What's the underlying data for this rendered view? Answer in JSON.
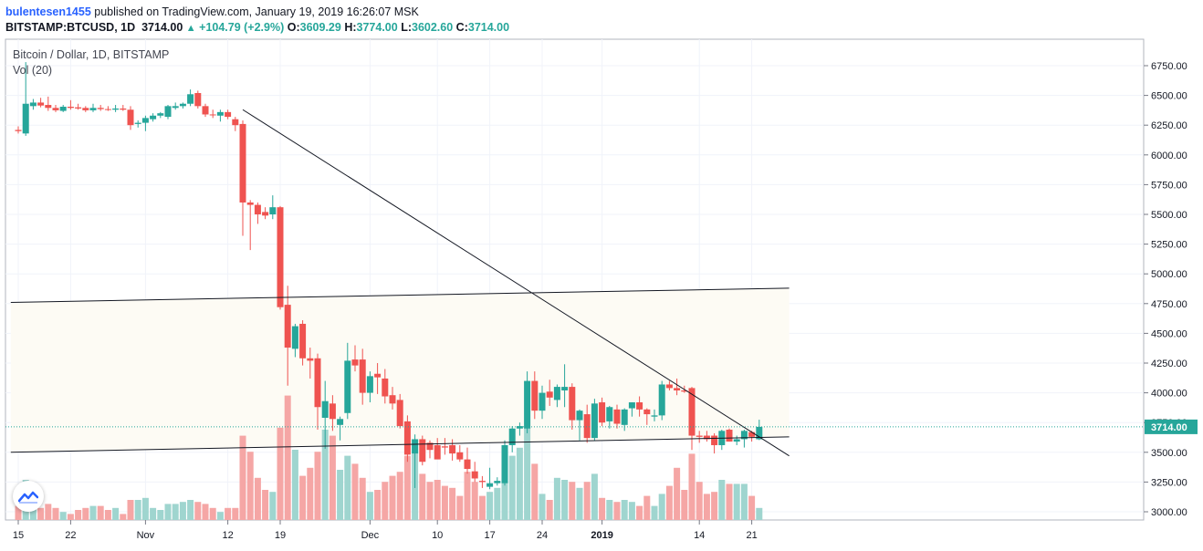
{
  "header": {
    "user": "bulentesen1455",
    "published_text": "published on TradingView.com, January 19, 2019 16:26:07 MSK"
  },
  "quote": {
    "symbol": "BITSTAMP:BTCUSD, 1D",
    "last": "3714.00",
    "change": "+104.79 (+2.9%)",
    "open_label": "O:",
    "open": "3609.29",
    "high_label": "H:",
    "high": "3774.00",
    "low_label": "L:",
    "low": "3602.60",
    "close_label": "C:",
    "close": "3714.00"
  },
  "legend": {
    "title": "Bitcoin / Dollar, 1D, BITSTAMP",
    "volume": "Vol (20)"
  },
  "colors": {
    "up": "#26a69a",
    "down": "#ef5350",
    "up_volume": "#9fd5cf",
    "down_volume": "#f5a6a5",
    "trendline": "#131722",
    "band_fill": "#fdfbf4",
    "price_tag": "#26a69a"
  },
  "chart_data": {
    "type": "candlestick",
    "y_axis_ticks": [
      "6750.00",
      "6500.00",
      "6250.00",
      "6000.00",
      "5750.00",
      "5500.00",
      "5250.00",
      "5000.00",
      "4750.00",
      "4500.00",
      "4250.00",
      "4000.00",
      "3750.00",
      "3500.00",
      "3250.00",
      "3000.00"
    ],
    "ylim": [
      2950,
      6850
    ],
    "x_axis_ticks": [
      {
        "label": "15",
        "index": 0
      },
      {
        "label": "22",
        "index": 7
      },
      {
        "label": "Nov",
        "index": 17
      },
      {
        "label": "12",
        "index": 28
      },
      {
        "label": "19",
        "index": 35
      },
      {
        "label": "Dec",
        "index": 47
      },
      {
        "label": "10",
        "index": 56
      },
      {
        "label": "17",
        "index": 63
      },
      {
        "label": "24",
        "index": 70
      },
      {
        "label": "2019",
        "index": 78
      },
      {
        "label": "14",
        "index": 91
      },
      {
        "label": "21",
        "index": 98
      }
    ],
    "last_price_label": "3714.00",
    "candles": [
      {
        "o": 6210,
        "h": 6240,
        "l": 6180,
        "c": 6200,
        "v": 0.35
      },
      {
        "o": 6180,
        "h": 6780,
        "l": 6160,
        "c": 6430,
        "v": 1.0
      },
      {
        "o": 6410,
        "h": 6470,
        "l": 6380,
        "c": 6440,
        "v": 0.35
      },
      {
        "o": 6440,
        "h": 6480,
        "l": 6400,
        "c": 6415,
        "v": 0.3
      },
      {
        "o": 6420,
        "h": 6490,
        "l": 6370,
        "c": 6395,
        "v": 0.4
      },
      {
        "o": 6395,
        "h": 6420,
        "l": 6360,
        "c": 6375,
        "v": 0.3
      },
      {
        "o": 6370,
        "h": 6420,
        "l": 6360,
        "c": 6405,
        "v": 0.2
      },
      {
        "o": 6405,
        "h": 6460,
        "l": 6380,
        "c": 6395,
        "v": 0.15
      },
      {
        "o": 6400,
        "h": 6430,
        "l": 6380,
        "c": 6390,
        "v": 0.25
      },
      {
        "o": 6395,
        "h": 6410,
        "l": 6360,
        "c": 6375,
        "v": 0.3
      },
      {
        "o": 6375,
        "h": 6430,
        "l": 6360,
        "c": 6395,
        "v": 0.35
      },
      {
        "o": 6395,
        "h": 6420,
        "l": 6370,
        "c": 6385,
        "v": 0.35
      },
      {
        "o": 6385,
        "h": 6410,
        "l": 6370,
        "c": 6380,
        "v": 0.25
      },
      {
        "o": 6380,
        "h": 6420,
        "l": 6360,
        "c": 6390,
        "v": 0.3
      },
      {
        "o": 6390,
        "h": 6420,
        "l": 6370,
        "c": 6380,
        "v": 0.15
      },
      {
        "o": 6380,
        "h": 6410,
        "l": 6210,
        "c": 6250,
        "v": 0.5
      },
      {
        "o": 6260,
        "h": 6290,
        "l": 6230,
        "c": 6270,
        "v": 0.5
      },
      {
        "o": 6270,
        "h": 6330,
        "l": 6200,
        "c": 6310,
        "v": 0.55
      },
      {
        "o": 6300,
        "h": 6350,
        "l": 6280,
        "c": 6330,
        "v": 0.3
      },
      {
        "o": 6330,
        "h": 6360,
        "l": 6310,
        "c": 6350,
        "v": 0.25
      },
      {
        "o": 6320,
        "h": 6420,
        "l": 6300,
        "c": 6410,
        "v": 0.4
      },
      {
        "o": 6395,
        "h": 6440,
        "l": 6380,
        "c": 6410,
        "v": 0.4
      },
      {
        "o": 6410,
        "h": 6440,
        "l": 6390,
        "c": 6430,
        "v": 0.45
      },
      {
        "o": 6430,
        "h": 6550,
        "l": 6410,
        "c": 6510,
        "v": 0.5
      },
      {
        "o": 6520,
        "h": 6540,
        "l": 6390,
        "c": 6410,
        "v": 0.45
      },
      {
        "o": 6410,
        "h": 6430,
        "l": 6320,
        "c": 6340,
        "v": 0.4
      },
      {
        "o": 6340,
        "h": 6380,
        "l": 6310,
        "c": 6335,
        "v": 0.3
      },
      {
        "o": 6330,
        "h": 6380,
        "l": 6280,
        "c": 6360,
        "v": 0.2
      },
      {
        "o": 6360,
        "h": 6380,
        "l": 6300,
        "c": 6320,
        "v": 0.3
      },
      {
        "o": 6300,
        "h": 6320,
        "l": 6200,
        "c": 6250,
        "v": 0.3
      },
      {
        "o": 6260,
        "h": 6290,
        "l": 5320,
        "c": 5600,
        "v": 2.1
      },
      {
        "o": 5600,
        "h": 5620,
        "l": 5200,
        "c": 5580,
        "v": 1.7
      },
      {
        "o": 5580,
        "h": 5600,
        "l": 5420,
        "c": 5500,
        "v": 1.05
      },
      {
        "o": 5520,
        "h": 5560,
        "l": 5460,
        "c": 5490,
        "v": 0.75
      },
      {
        "o": 5500,
        "h": 5660,
        "l": 5460,
        "c": 5560,
        "v": 0.7
      },
      {
        "o": 5560,
        "h": 5570,
        "l": 4700,
        "c": 4720,
        "v": 2.3
      },
      {
        "o": 4740,
        "h": 4900,
        "l": 4060,
        "c": 4380,
        "v": 3.1
      },
      {
        "o": 4370,
        "h": 4580,
        "l": 4300,
        "c": 4560,
        "v": 1.75
      },
      {
        "o": 4580,
        "h": 4610,
        "l": 4230,
        "c": 4290,
        "v": 1.1
      },
      {
        "o": 4290,
        "h": 4380,
        "l": 4120,
        "c": 4270,
        "v": 1.3
      },
      {
        "o": 4290,
        "h": 4330,
        "l": 3690,
        "c": 3880,
        "v": 1.7
      },
      {
        "o": 3790,
        "h": 4100,
        "l": 3530,
        "c": 3930,
        "v": 2.25
      },
      {
        "o": 3910,
        "h": 3980,
        "l": 3680,
        "c": 3780,
        "v": 2.1
      },
      {
        "o": 3730,
        "h": 3800,
        "l": 3600,
        "c": 3780,
        "v": 1.25
      },
      {
        "o": 3830,
        "h": 4420,
        "l": 3780,
        "c": 4270,
        "v": 1.6
      },
      {
        "o": 4280,
        "h": 4400,
        "l": 4180,
        "c": 4230,
        "v": 1.4
      },
      {
        "o": 4280,
        "h": 4370,
        "l": 3900,
        "c": 4000,
        "v": 1.05
      },
      {
        "o": 4000,
        "h": 4180,
        "l": 3920,
        "c": 4140,
        "v": 0.7
      },
      {
        "o": 4160,
        "h": 4250,
        "l": 3990,
        "c": 4130,
        "v": 0.75
      },
      {
        "o": 4120,
        "h": 4200,
        "l": 3910,
        "c": 3970,
        "v": 0.95
      },
      {
        "o": 3980,
        "h": 4050,
        "l": 3860,
        "c": 3910,
        "v": 1.1
      },
      {
        "o": 3940,
        "h": 3990,
        "l": 3700,
        "c": 3720,
        "v": 1.2
      },
      {
        "o": 3760,
        "h": 3810,
        "l": 3420,
        "c": 3480,
        "v": 1.6
      },
      {
        "o": 3490,
        "h": 3650,
        "l": 3200,
        "c": 3610,
        "v": 1.9
      },
      {
        "o": 3610,
        "h": 3640,
        "l": 3390,
        "c": 3420,
        "v": 1.15
      },
      {
        "o": 3580,
        "h": 3600,
        "l": 3450,
        "c": 3520,
        "v": 0.95
      },
      {
        "o": 3560,
        "h": 3620,
        "l": 3450,
        "c": 3440,
        "v": 1.0
      },
      {
        "o": 3550,
        "h": 3620,
        "l": 3480,
        "c": 3540,
        "v": 0.85
      },
      {
        "o": 3560,
        "h": 3610,
        "l": 3430,
        "c": 3490,
        "v": 0.8
      },
      {
        "o": 3500,
        "h": 3560,
        "l": 3420,
        "c": 3440,
        "v": 0.6
      },
      {
        "o": 3440,
        "h": 3540,
        "l": 3320,
        "c": 3360,
        "v": 1.2
      },
      {
        "o": 3340,
        "h": 3420,
        "l": 3250,
        "c": 3280,
        "v": 0.95
      },
      {
        "o": 3260,
        "h": 3300,
        "l": 3200,
        "c": 3250,
        "v": 0.6
      },
      {
        "o": 3210,
        "h": 3370,
        "l": 3190,
        "c": 3240,
        "v": 0.7
      },
      {
        "o": 3240,
        "h": 3290,
        "l": 3220,
        "c": 3260,
        "v": 0.8
      },
      {
        "o": 3240,
        "h": 3600,
        "l": 3220,
        "c": 3560,
        "v": 0.95
      },
      {
        "o": 3560,
        "h": 3720,
        "l": 3500,
        "c": 3700,
        "v": 1.6
      },
      {
        "o": 3700,
        "h": 3750,
        "l": 3640,
        "c": 3720,
        "v": 1.8
      },
      {
        "o": 3700,
        "h": 4180,
        "l": 3660,
        "c": 4100,
        "v": 2.3
      },
      {
        "o": 4100,
        "h": 4180,
        "l": 3780,
        "c": 3850,
        "v": 1.4
      },
      {
        "o": 3850,
        "h": 4060,
        "l": 3780,
        "c": 4000,
        "v": 0.65
      },
      {
        "o": 4010,
        "h": 4110,
        "l": 3890,
        "c": 3960,
        "v": 0.5
      },
      {
        "o": 3940,
        "h": 4070,
        "l": 3880,
        "c": 4050,
        "v": 1.05
      },
      {
        "o": 4020,
        "h": 4240,
        "l": 3880,
        "c": 4050,
        "v": 1.0
      },
      {
        "o": 4050,
        "h": 4080,
        "l": 3690,
        "c": 3770,
        "v": 0.95
      },
      {
        "o": 3770,
        "h": 3860,
        "l": 3600,
        "c": 3850,
        "v": 0.8
      },
      {
        "o": 3820,
        "h": 3900,
        "l": 3580,
        "c": 3620,
        "v": 0.95
      },
      {
        "o": 3620,
        "h": 3950,
        "l": 3600,
        "c": 3910,
        "v": 1.15
      },
      {
        "o": 3920,
        "h": 3960,
        "l": 3720,
        "c": 3750,
        "v": 0.55
      },
      {
        "o": 3760,
        "h": 3890,
        "l": 3700,
        "c": 3880,
        "v": 0.5
      },
      {
        "o": 3860,
        "h": 3900,
        "l": 3700,
        "c": 3740,
        "v": 0.45
      },
      {
        "o": 3730,
        "h": 3870,
        "l": 3680,
        "c": 3860,
        "v": 0.5
      },
      {
        "o": 3870,
        "h": 3920,
        "l": 3800,
        "c": 3920,
        "v": 0.45
      },
      {
        "o": 3920,
        "h": 3970,
        "l": 3800,
        "c": 3860,
        "v": 0.35
      },
      {
        "o": 3860,
        "h": 3870,
        "l": 3730,
        "c": 3820,
        "v": 0.6
      },
      {
        "o": 3800,
        "h": 3860,
        "l": 3760,
        "c": 3810,
        "v": 0.35
      },
      {
        "o": 3810,
        "h": 4100,
        "l": 3770,
        "c": 4070,
        "v": 0.65
      },
      {
        "o": 4070,
        "h": 4100,
        "l": 4020,
        "c": 4040,
        "v": 0.85
      },
      {
        "o": 4040,
        "h": 4120,
        "l": 3980,
        "c": 4020,
        "v": 1.3
      },
      {
        "o": 4020,
        "h": 4060,
        "l": 4000,
        "c": 4010,
        "v": 0.75
      },
      {
        "o": 4040,
        "h": 4050,
        "l": 3520,
        "c": 3640,
        "v": 1.65
      },
      {
        "o": 3640,
        "h": 3680,
        "l": 3580,
        "c": 3630,
        "v": 0.95
      },
      {
        "o": 3640,
        "h": 3680,
        "l": 3590,
        "c": 3610,
        "v": 0.65
      },
      {
        "o": 3640,
        "h": 3660,
        "l": 3490,
        "c": 3560,
        "v": 0.7
      },
      {
        "o": 3560,
        "h": 3690,
        "l": 3520,
        "c": 3680,
        "v": 1.0
      },
      {
        "o": 3690,
        "h": 3700,
        "l": 3590,
        "c": 3590,
        "v": 0.9
      },
      {
        "o": 3590,
        "h": 3640,
        "l": 3560,
        "c": 3610,
        "v": 0.9
      },
      {
        "o": 3610,
        "h": 3690,
        "l": 3540,
        "c": 3680,
        "v": 0.9
      },
      {
        "o": 3670,
        "h": 3680,
        "l": 3590,
        "c": 3630,
        "v": 0.6
      },
      {
        "o": 3609.29,
        "h": 3774,
        "l": 3602.6,
        "c": 3714,
        "v": 0.3
      }
    ],
    "trendlines": [
      {
        "name": "descending-trendline",
        "from": {
          "index": 30,
          "price": 6380
        },
        "to": {
          "index": 103,
          "price": 3470
        }
      },
      {
        "name": "upper-channel-line",
        "from": {
          "index": -1,
          "price": 4760
        },
        "to": {
          "index": 103,
          "price": 4880
        }
      },
      {
        "name": "lower-channel-line",
        "from": {
          "index": -1,
          "price": 3500
        },
        "to": {
          "index": 103,
          "price": 3630
        }
      }
    ]
  }
}
